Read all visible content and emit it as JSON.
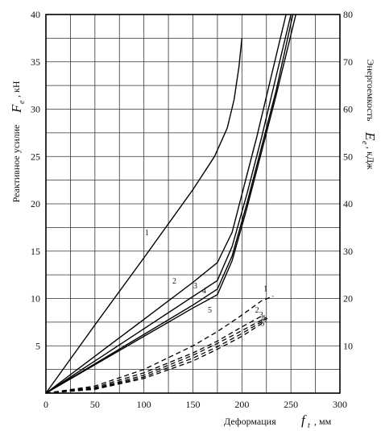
{
  "chart_data": {
    "type": "line",
    "title": "",
    "xlabel": {
      "text": "Деформация",
      "symbol": "f",
      "sub": "t",
      "unit": ", мм"
    },
    "ylabel_left": {
      "text": "Реактивное усилие",
      "symbol": "F",
      "sub": "e",
      "unit": ", кН"
    },
    "ylabel_right": {
      "text": "Энергоемкость",
      "symbol": "E",
      "sub": "e",
      "unit": ", кДж"
    },
    "xlim": [
      0,
      300
    ],
    "ylim_left": [
      0,
      40
    ],
    "ylim_right": [
      0,
      80
    ],
    "xticks": [
      "0",
      "50",
      "100",
      "150",
      "200",
      "250",
      "300"
    ],
    "yticks_left": [
      "5",
      "10",
      "15",
      "20",
      "25",
      "30",
      "35",
      "40"
    ],
    "yticks_right": [
      "10",
      "20",
      "30",
      "40",
      "50",
      "60",
      "70",
      "80"
    ],
    "grid": true,
    "series": [
      {
        "name": "1",
        "axis": "left",
        "style": "solid",
        "x": [
          0,
          50,
          100,
          150,
          172,
          185,
          192,
          197,
          200
        ],
        "y": [
          0,
          7.2,
          14.3,
          21.5,
          25,
          28,
          31,
          34.5,
          37.5
        ]
      },
      {
        "name": "2",
        "axis": "left",
        "style": "solid",
        "x": [
          0,
          50,
          100,
          150,
          175,
          190,
          200,
          215,
          230,
          245
        ],
        "y": [
          0,
          3.9,
          7.8,
          11.7,
          13.8,
          17,
          21,
          27,
          33.5,
          40
        ]
      },
      {
        "name": "3",
        "axis": "left",
        "style": "solid",
        "x": [
          0,
          50,
          100,
          150,
          175,
          190,
          205,
          220,
          235,
          250
        ],
        "y": [
          0,
          3.4,
          6.8,
          10.2,
          11.9,
          15.5,
          21,
          27,
          33.5,
          40
        ]
      },
      {
        "name": "4",
        "axis": "left",
        "style": "solid",
        "x": [
          0,
          50,
          100,
          150,
          175,
          190,
          205,
          220,
          235,
          252
        ],
        "y": [
          0,
          3.1,
          6.2,
          9.3,
          11,
          14.5,
          20,
          26,
          32,
          40
        ]
      },
      {
        "name": "5",
        "axis": "left",
        "style": "solid",
        "x": [
          0,
          50,
          100,
          150,
          175,
          190,
          205,
          220,
          235,
          255
        ],
        "y": [
          0,
          3,
          6,
          9,
          10.4,
          14,
          19.5,
          25.5,
          31.5,
          40
        ]
      },
      {
        "name": "1",
        "axis": "right",
        "style": "dashed",
        "x": [
          0,
          50,
          100,
          150,
          175,
          200,
          220,
          232
        ],
        "y": [
          0,
          1.5,
          5,
          10,
          13,
          16.5,
          19.5,
          20.5
        ]
      },
      {
        "name": "2",
        "axis": "right",
        "style": "dashed",
        "x": [
          0,
          50,
          100,
          150,
          175,
          200,
          222
        ],
        "y": [
          0,
          1.2,
          4.3,
          8.5,
          11,
          14,
          16.5
        ]
      },
      {
        "name": "3",
        "axis": "right",
        "style": "dashed",
        "x": [
          0,
          50,
          100,
          150,
          175,
          200,
          225
        ],
        "y": [
          0,
          1,
          3.8,
          8,
          10.5,
          13.2,
          16
        ]
      },
      {
        "name": "4",
        "axis": "right",
        "style": "dashed",
        "x": [
          0,
          50,
          100,
          150,
          175,
          200,
          226
        ],
        "y": [
          0,
          0.9,
          3.4,
          7.4,
          9.8,
          12.6,
          15.8
        ]
      },
      {
        "name": "5",
        "axis": "right",
        "style": "dashed",
        "x": [
          0,
          50,
          100,
          150,
          175,
          200,
          224
        ],
        "y": [
          0,
          0.8,
          3.1,
          6.8,
          9.3,
          12,
          15.2
        ]
      }
    ]
  }
}
